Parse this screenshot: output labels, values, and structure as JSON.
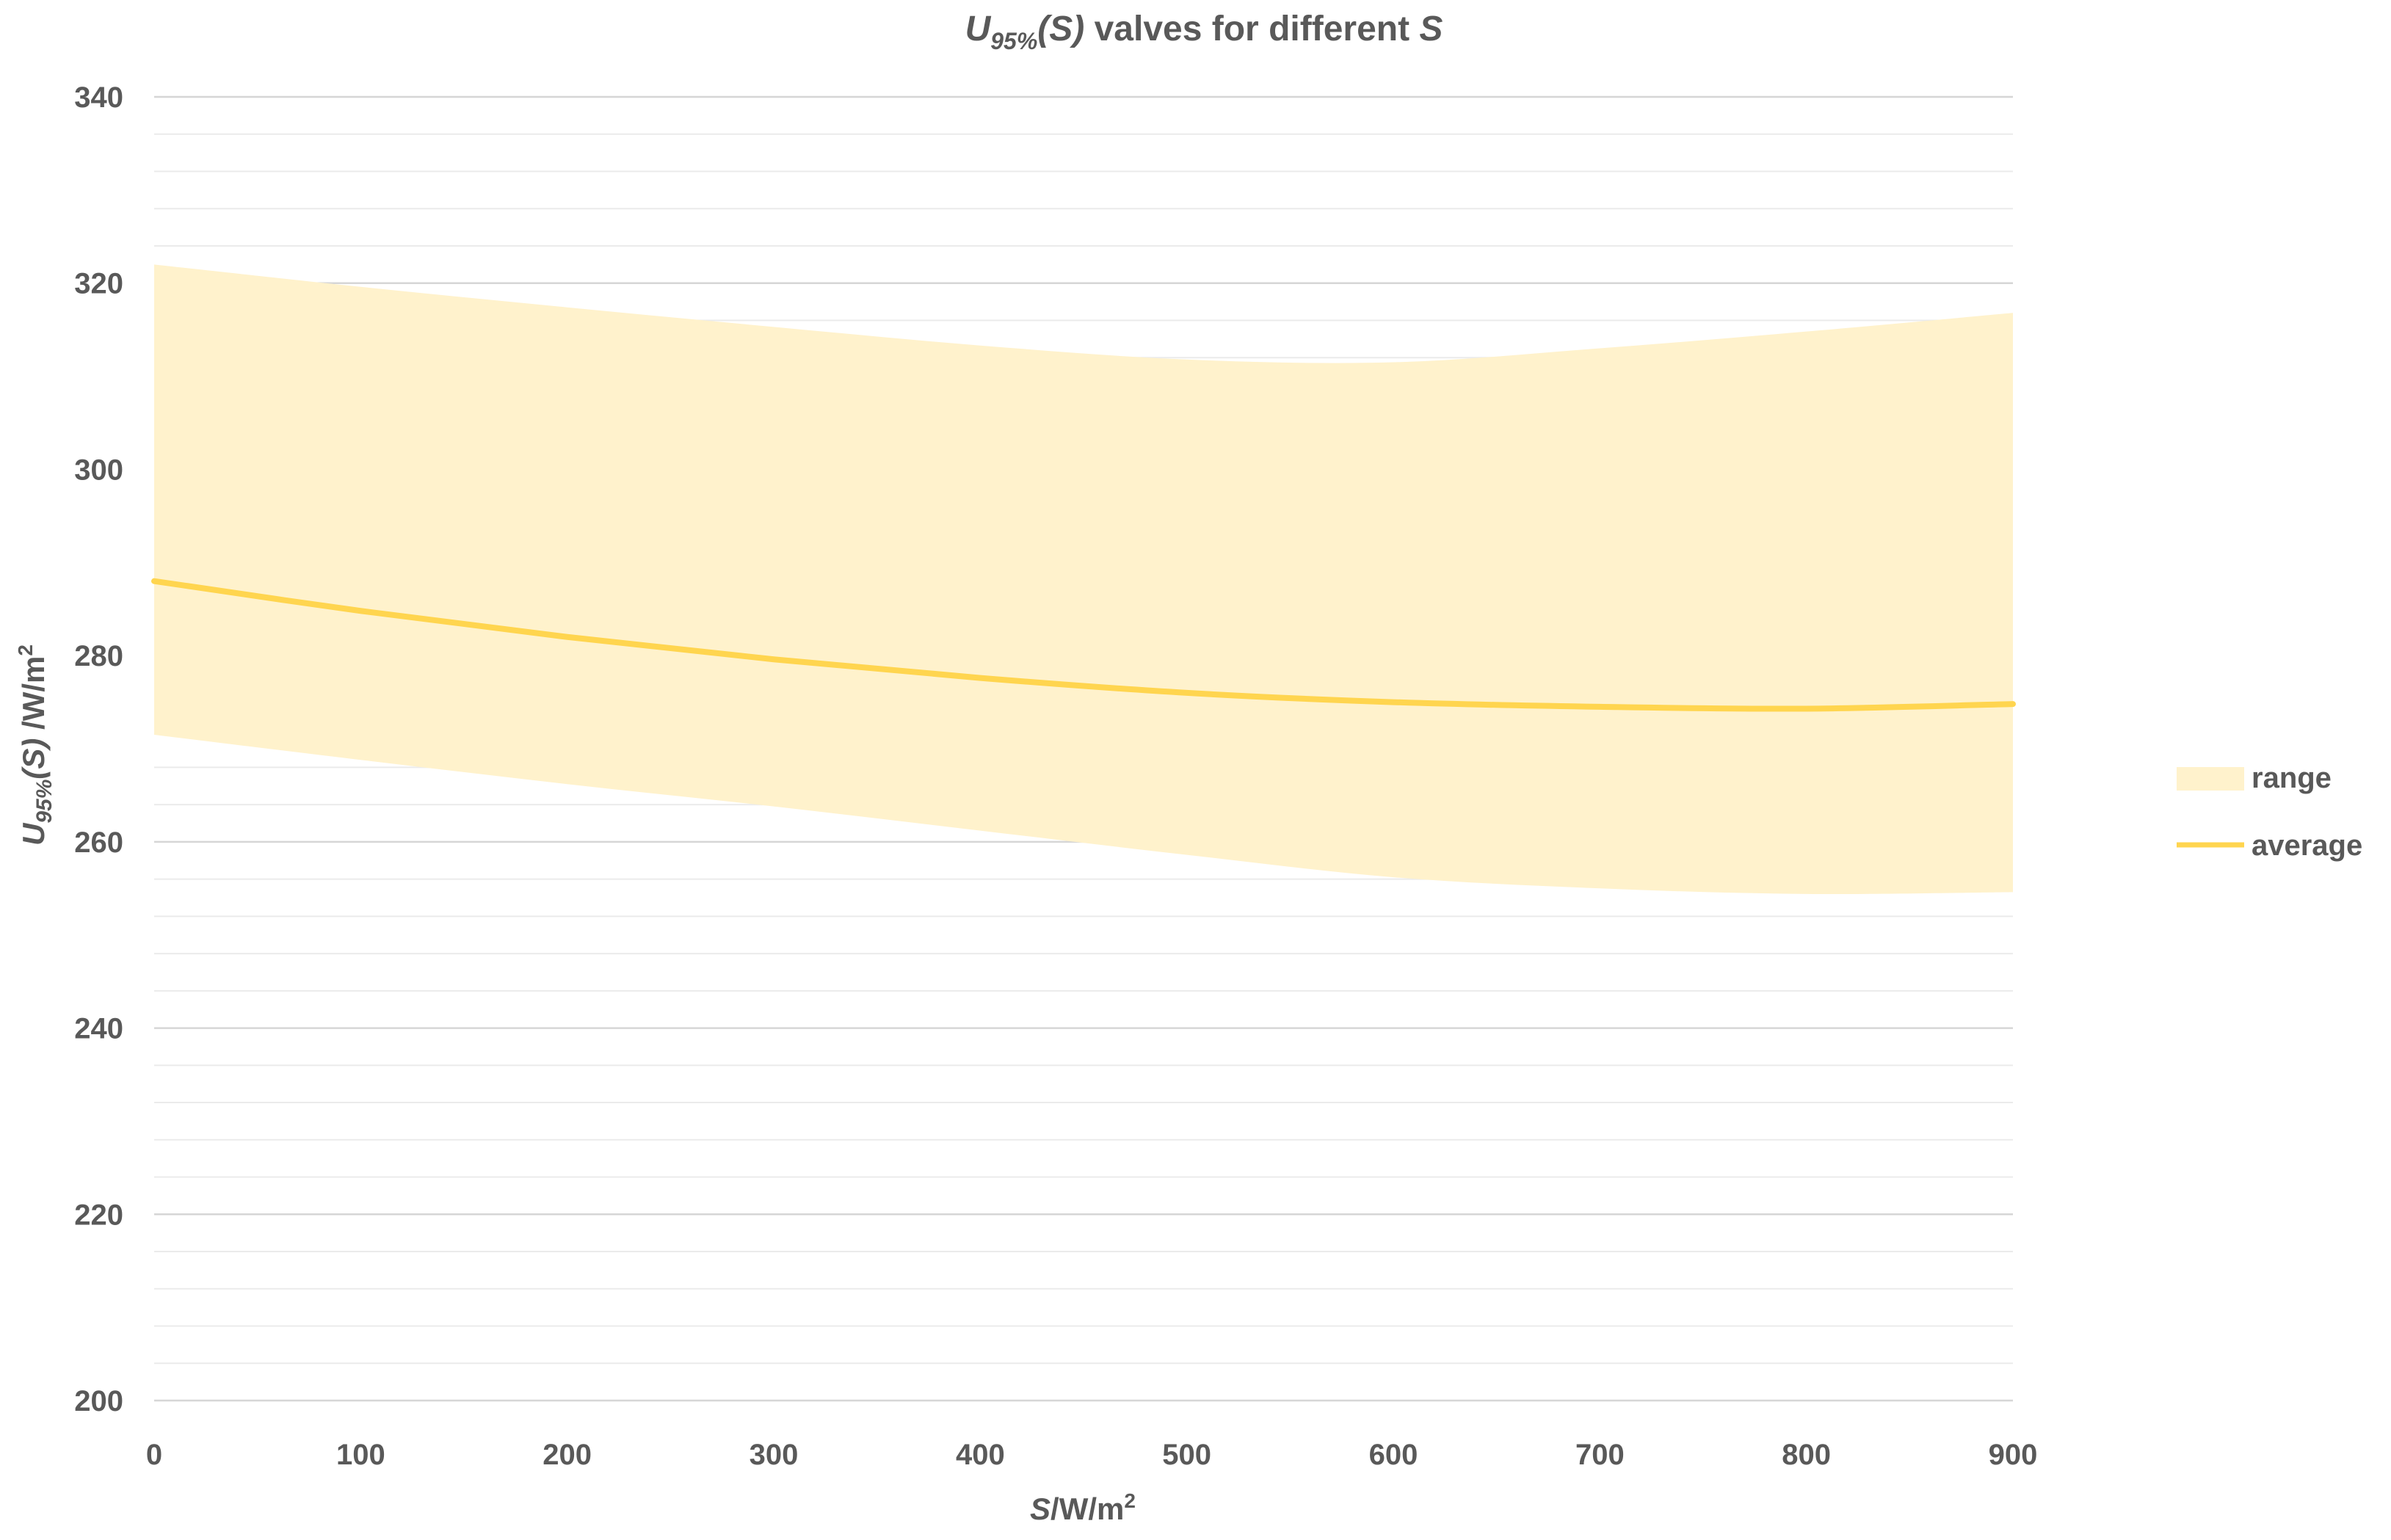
{
  "chart_data": {
    "type": "area",
    "title": {
      "symbol": "U",
      "subscript": "95%",
      "arg": "(S)",
      "text": " valves for different ",
      "var": "S"
    },
    "xlabel": {
      "var": "S",
      "unit": "/W/m",
      "sup": "2"
    },
    "ylabel": {
      "symbol": "U",
      "subscript": "95%",
      "arg": "(S)",
      "unit": " /W/m",
      "sup": "2"
    },
    "xlim": [
      0,
      900
    ],
    "ylim": [
      200,
      340
    ],
    "x_ticks": [
      0,
      100,
      200,
      300,
      400,
      500,
      600,
      700,
      800,
      900
    ],
    "y_ticks": [
      200,
      220,
      240,
      260,
      280,
      300,
      320,
      340
    ],
    "y_minor_step": 4,
    "grid": true,
    "legend_position": "right",
    "x": [
      0,
      100,
      200,
      300,
      400,
      500,
      600,
      700,
      800,
      900
    ],
    "series": [
      {
        "name": "range",
        "kind": "band",
        "color": "#fff2cc",
        "lower": [
          271.5,
          268.8,
          266.2,
          263.8,
          261.2,
          258.6,
          256.2,
          255,
          254.4,
          254.6
        ],
        "upper": [
          322,
          319.6,
          317.4,
          315.3,
          313.3,
          311.8,
          311.5,
          313,
          314.8,
          316.8
        ]
      },
      {
        "name": "average",
        "kind": "line",
        "color": "#ffd54f",
        "values": [
          288,
          284.8,
          282,
          279.6,
          277.6,
          276,
          275,
          274.5,
          274.3,
          274.8
        ]
      }
    ]
  }
}
